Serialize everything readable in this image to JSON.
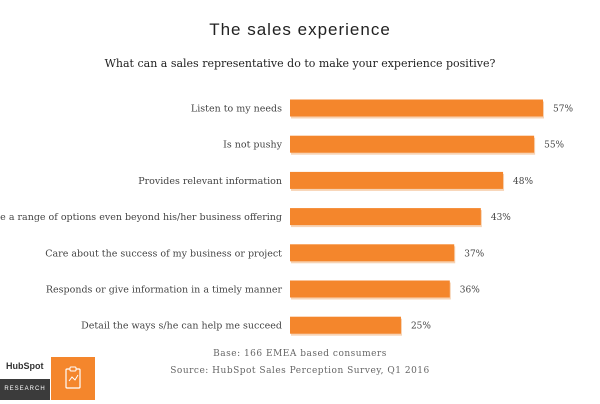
{
  "title": "The sales experience",
  "subtitle": "What can a sales representative do to make your experience positive?",
  "chart_data": {
    "type": "bar",
    "orientation": "horizontal",
    "categories": [
      "Listen to my needs",
      "Is not pushy",
      "Provides relevant information",
      "Provide a range of options even beyond his/her business offering",
      "Care about the success of my business or project",
      "Responds or give information in a timely manner",
      "Detail the ways s/he can help me succeed"
    ],
    "values": [
      57,
      55,
      48,
      43,
      37,
      36,
      25
    ],
    "value_labels": [
      "57%",
      "55%",
      "48%",
      "43%",
      "37%",
      "36%",
      "25%"
    ],
    "xlim": [
      0,
      57
    ],
    "bar_color": "#f4862c",
    "grid": false,
    "legend": "none"
  },
  "footnotes": {
    "base": "Base: 166 EMEA based consumers",
    "source": "Source: HubSpot Sales Perception Survey, Q1 2016"
  },
  "branding": {
    "logo_text": "HubSpot",
    "research_label": "RESEARCH",
    "icon": "report-clipboard-icon",
    "accent_color": "#f4862c"
  }
}
